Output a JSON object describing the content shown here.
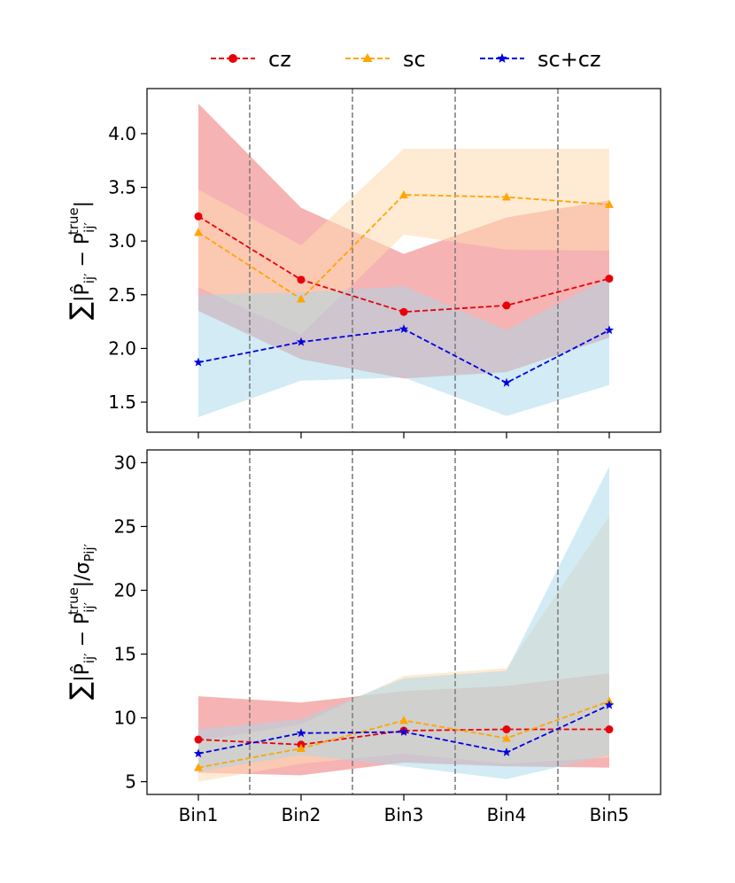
{
  "colors": {
    "cz": "#e8000b",
    "sc": "#ffa500",
    "sc_cz": "#0000e0",
    "cz_band": "#f08080",
    "sc_band": "#ffd8b0",
    "sc_cz_band": "#a6d8ea",
    "vline": "#808080"
  },
  "legend": {
    "position": "top-center",
    "entries": [
      {
        "key": "cz",
        "label": "cz",
        "marker": "circle"
      },
      {
        "key": "sc",
        "label": "sc",
        "marker": "triangle"
      },
      {
        "key": "sc_cz",
        "label": "sc+cz",
        "marker": "star"
      }
    ]
  },
  "chart_data": [
    {
      "type": "line",
      "panel": "top",
      "ylabel": "∑i|P̂ij′ − Pij′true|",
      "categories": [
        "Bin1",
        "Bin2",
        "Bin3",
        "Bin4",
        "Bin5"
      ],
      "ylim": [
        1.22,
        4.42
      ],
      "yticks": [
        1.5,
        2.0,
        2.5,
        3.0,
        3.5,
        4.0
      ],
      "ytick_labels": [
        "1.5",
        "2.0",
        "2.5",
        "3.0",
        "3.5",
        "4.0"
      ],
      "grid": false,
      "vlines_between_bins": true,
      "series": [
        {
          "key": "cz",
          "name": "cz",
          "values": [
            3.23,
            2.64,
            2.34,
            2.4,
            2.65
          ],
          "band_lower": [
            2.35,
            1.9,
            1.72,
            1.78,
            2.1
          ],
          "band_upper": [
            4.28,
            3.31,
            2.88,
            3.22,
            3.38
          ]
        },
        {
          "key": "sc",
          "name": "sc",
          "values": [
            3.08,
            2.46,
            3.43,
            3.41,
            3.34
          ],
          "band_lower": [
            2.57,
            2.13,
            3.06,
            2.92,
            2.91
          ],
          "band_upper": [
            3.48,
            2.96,
            3.86,
            3.86,
            3.86
          ]
        },
        {
          "key": "sc_cz",
          "name": "sc+cz",
          "values": [
            1.87,
            2.06,
            2.18,
            1.68,
            2.17
          ],
          "band_lower": [
            1.36,
            1.7,
            1.73,
            1.37,
            1.66
          ],
          "band_upper": [
            2.5,
            2.52,
            2.58,
            2.17,
            2.66
          ]
        }
      ]
    },
    {
      "type": "line",
      "panel": "bottom",
      "ylabel": "∑i|P̂ij′ − Pij′true|/σPij′",
      "categories": [
        "Bin1",
        "Bin2",
        "Bin3",
        "Bin4",
        "Bin5"
      ],
      "ylim": [
        4.0,
        31.0
      ],
      "yticks": [
        5,
        10,
        15,
        20,
        25,
        30
      ],
      "ytick_labels": [
        "5",
        "10",
        "15",
        "20",
        "25",
        "30"
      ],
      "grid": false,
      "vlines_between_bins": true,
      "series": [
        {
          "key": "cz",
          "name": "cz",
          "values": [
            8.3,
            7.9,
            9.0,
            9.1,
            9.1
          ],
          "band_lower": [
            5.7,
            5.5,
            6.5,
            6.2,
            6.1
          ],
          "band_upper": [
            11.7,
            11.2,
            12.1,
            12.5,
            13.5
          ]
        },
        {
          "key": "sc",
          "name": "sc",
          "values": [
            6.1,
            7.6,
            9.8,
            8.4,
            11.3
          ],
          "band_lower": [
            5.0,
            6.4,
            7.2,
            6.4,
            6.9
          ],
          "band_upper": [
            8.2,
            9.5,
            13.3,
            13.9,
            25.8
          ]
        },
        {
          "key": "sc_cz",
          "name": "sc+cz",
          "values": [
            7.2,
            8.8,
            8.9,
            7.3,
            11.0
          ],
          "band_lower": [
            5.8,
            7.1,
            6.2,
            5.2,
            7.1
          ],
          "band_upper": [
            9.1,
            9.9,
            13.1,
            13.7,
            29.7
          ]
        }
      ]
    }
  ]
}
